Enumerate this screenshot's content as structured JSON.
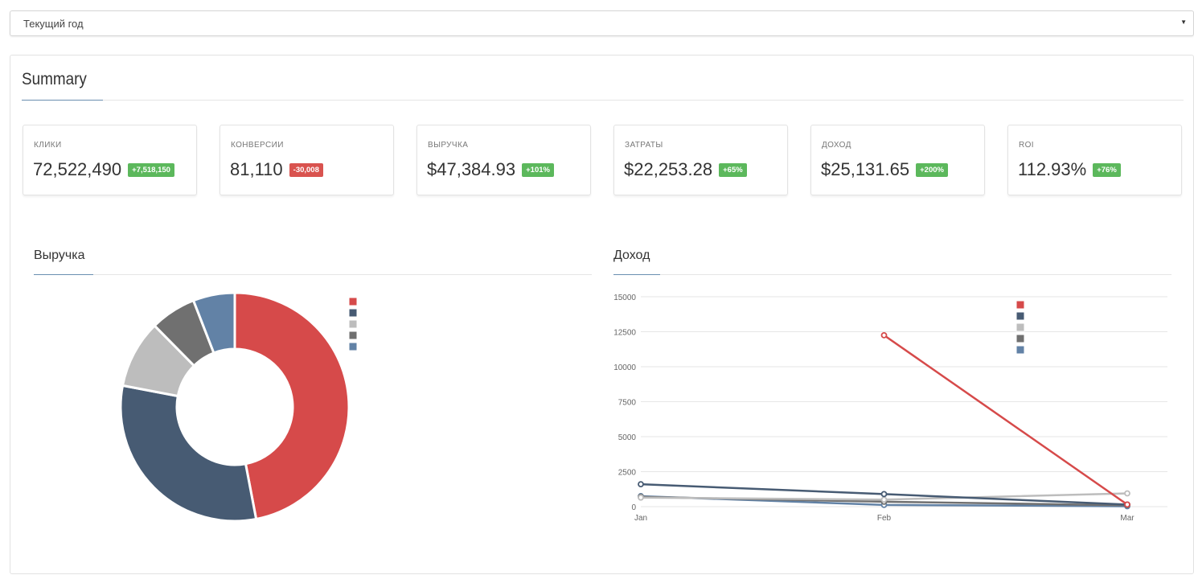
{
  "filter": {
    "selected": "Текущий год"
  },
  "summary": {
    "title": "Summary",
    "kpis": [
      {
        "label": "Клики",
        "value": "72,522,490",
        "delta": "+7,518,150",
        "trend": "up"
      },
      {
        "label": "Конверсии",
        "value": "81,110",
        "delta": "-30,008",
        "trend": "down"
      },
      {
        "label": "Выручка",
        "value": "$47,384.93",
        "delta": "+101%",
        "trend": "up"
      },
      {
        "label": "Затраты",
        "value": "$22,253.28",
        "delta": "+65%",
        "trend": "up"
      },
      {
        "label": "Доход",
        "value": "$25,131.65",
        "delta": "+200%",
        "trend": "up"
      },
      {
        "label": "ROI",
        "value": "112.93%",
        "delta": "+76%",
        "trend": "up"
      }
    ]
  },
  "colors": {
    "s1": "#d64a4a",
    "s2": "#475b73",
    "s3": "#bdbdbd",
    "s4": "#707070",
    "s5": "#6282a6",
    "up": "#5cb85c",
    "down": "#d9534f",
    "accent": "#6a8fb0"
  },
  "revenue_section": {
    "title": "Выручка"
  },
  "income_section": {
    "title": "Доход"
  },
  "chart_data": [
    {
      "type": "pie",
      "variant": "doughnut",
      "title": "Выручка",
      "values": [
        47,
        31,
        9.6,
        6.5,
        5.9
      ],
      "colors": [
        "#d64a4a",
        "#475b73",
        "#bdbdbd",
        "#707070",
        "#6282a6"
      ],
      "legend_position": "top-right",
      "legend_labels": [
        "",
        "",
        "",
        "",
        ""
      ]
    },
    {
      "type": "line",
      "title": "Доход",
      "categories": [
        "Jan",
        "Feb",
        "Mar"
      ],
      "ylim": [
        0,
        15000
      ],
      "yticks": [
        0,
        2500,
        5000,
        7500,
        10000,
        12500,
        15000
      ],
      "grid": true,
      "legend_position": "top-right",
      "series": [
        {
          "color": "#d64a4a",
          "values": [
            null,
            12250,
            150
          ]
        },
        {
          "color": "#475b73",
          "values": [
            1600,
            900,
            150
          ]
        },
        {
          "color": "#bdbdbd",
          "values": [
            650,
            500,
            950
          ]
        },
        {
          "color": "#707070",
          "values": [
            700,
            350,
            100
          ]
        },
        {
          "color": "#6282a6",
          "values": [
            750,
            120,
            30
          ]
        }
      ]
    }
  ]
}
